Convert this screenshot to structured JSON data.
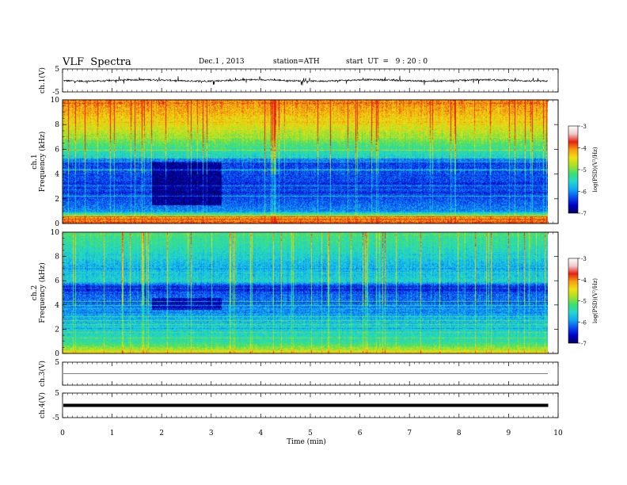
{
  "header": {
    "title": "VLF  Spectra",
    "date": "Dec.1 , 2013",
    "station": "station=ATH",
    "start": "start  UT  =   9 : 20 : 0"
  },
  "chart_data": [
    {
      "type": "line",
      "ylabel": "ch.1(V)",
      "xlim": [
        0,
        10
      ],
      "ylim": [
        -5,
        5
      ],
      "yticks": [
        "5",
        "-5"
      ],
      "series": [
        {
          "baseline": 0,
          "noise_amplitude": 1.2,
          "color": "#000000"
        }
      ]
    },
    {
      "type": "heatmap",
      "ylabel": "ch.1\nFrequency  (kHz)",
      "xlim": [
        0,
        10
      ],
      "ylim": [
        0,
        10
      ],
      "yticks": [
        "0",
        "2",
        "4",
        "6",
        "8",
        "10"
      ],
      "data_end_min": 9.8,
      "colorbar": {
        "label": "log(PSD)(V²/Hz)",
        "range": [
          -7,
          -3
        ],
        "ticks": [
          "-3",
          "-4",
          "-5",
          "-6",
          "-7"
        ]
      },
      "log_psd_profile": {
        "freq_khz": [
          0,
          0.5,
          1,
          2,
          3,
          4,
          5,
          5.5,
          6,
          7,
          8,
          9,
          10
        ],
        "log_psd": [
          -3.2,
          -3.5,
          -5.8,
          -6.1,
          -6.2,
          -6.1,
          -6.2,
          -5.2,
          -5.0,
          -4.4,
          -4.0,
          -3.6,
          -3.4
        ]
      },
      "quiet_region": {
        "t_min": [
          1.8,
          3.2
        ],
        "freq_khz": [
          1.5,
          5.0
        ],
        "log_psd": -6.8
      }
    },
    {
      "type": "heatmap",
      "ylabel": "ch.2\nFrequency  (kHz)",
      "xlim": [
        0,
        10
      ],
      "ylim": [
        0,
        10
      ],
      "yticks": [
        "0",
        "2",
        "4",
        "6",
        "8",
        "10"
      ],
      "data_end_min": 9.8,
      "colorbar": {
        "label": "log(PSD)(V²/Hz)",
        "range": [
          -7,
          -3
        ],
        "ticks": [
          "-3",
          "-4",
          "-5",
          "-6",
          "-7"
        ]
      },
      "log_psd_profile": {
        "freq_khz": [
          0,
          0.5,
          1,
          2,
          3,
          4,
          5,
          5.5,
          6,
          7,
          8,
          9,
          10
        ],
        "log_psd": [
          -3.6,
          -4.5,
          -5.0,
          -5.3,
          -5.6,
          -5.9,
          -6.0,
          -6.5,
          -5.2,
          -5.6,
          -5.3,
          -5.0,
          -4.8
        ]
      },
      "quiet_region": {
        "t_min": [
          1.8,
          3.2
        ],
        "freq_khz": [
          3.6,
          4.6
        ],
        "log_psd": -6.6
      }
    },
    {
      "type": "line",
      "ylabel": "ch.3(V)",
      "xlim": [
        0,
        10
      ],
      "ylim": [
        -5,
        5
      ],
      "yticks": [
        "5"
      ],
      "series": [
        {
          "baseline": 0,
          "noise_amplitude": 0.05,
          "color": "#000000"
        }
      ]
    },
    {
      "type": "line",
      "ylabel": "ch.4(V)",
      "xlim": [
        0,
        10
      ],
      "ylim": [
        -5,
        5
      ],
      "yticks": [
        "5",
        "-5"
      ],
      "series": [
        {
          "baseline": 0,
          "noise_amplitude": 0.3,
          "color": "#000000"
        }
      ]
    }
  ],
  "x_axis": {
    "label": "Time  (min)",
    "ticks": [
      "0",
      "1",
      "2",
      "3",
      "4",
      "5",
      "6",
      "7",
      "8",
      "9",
      "10"
    ]
  },
  "colors": {
    "colormap": [
      "#000060",
      "#0000c8",
      "#0a4cf0",
      "#11a8f4",
      "#22d8d0",
      "#3ce070",
      "#a8e028",
      "#f0e010",
      "#f4a010",
      "#e82010",
      "#f0c8c8",
      "#ffffff"
    ]
  }
}
